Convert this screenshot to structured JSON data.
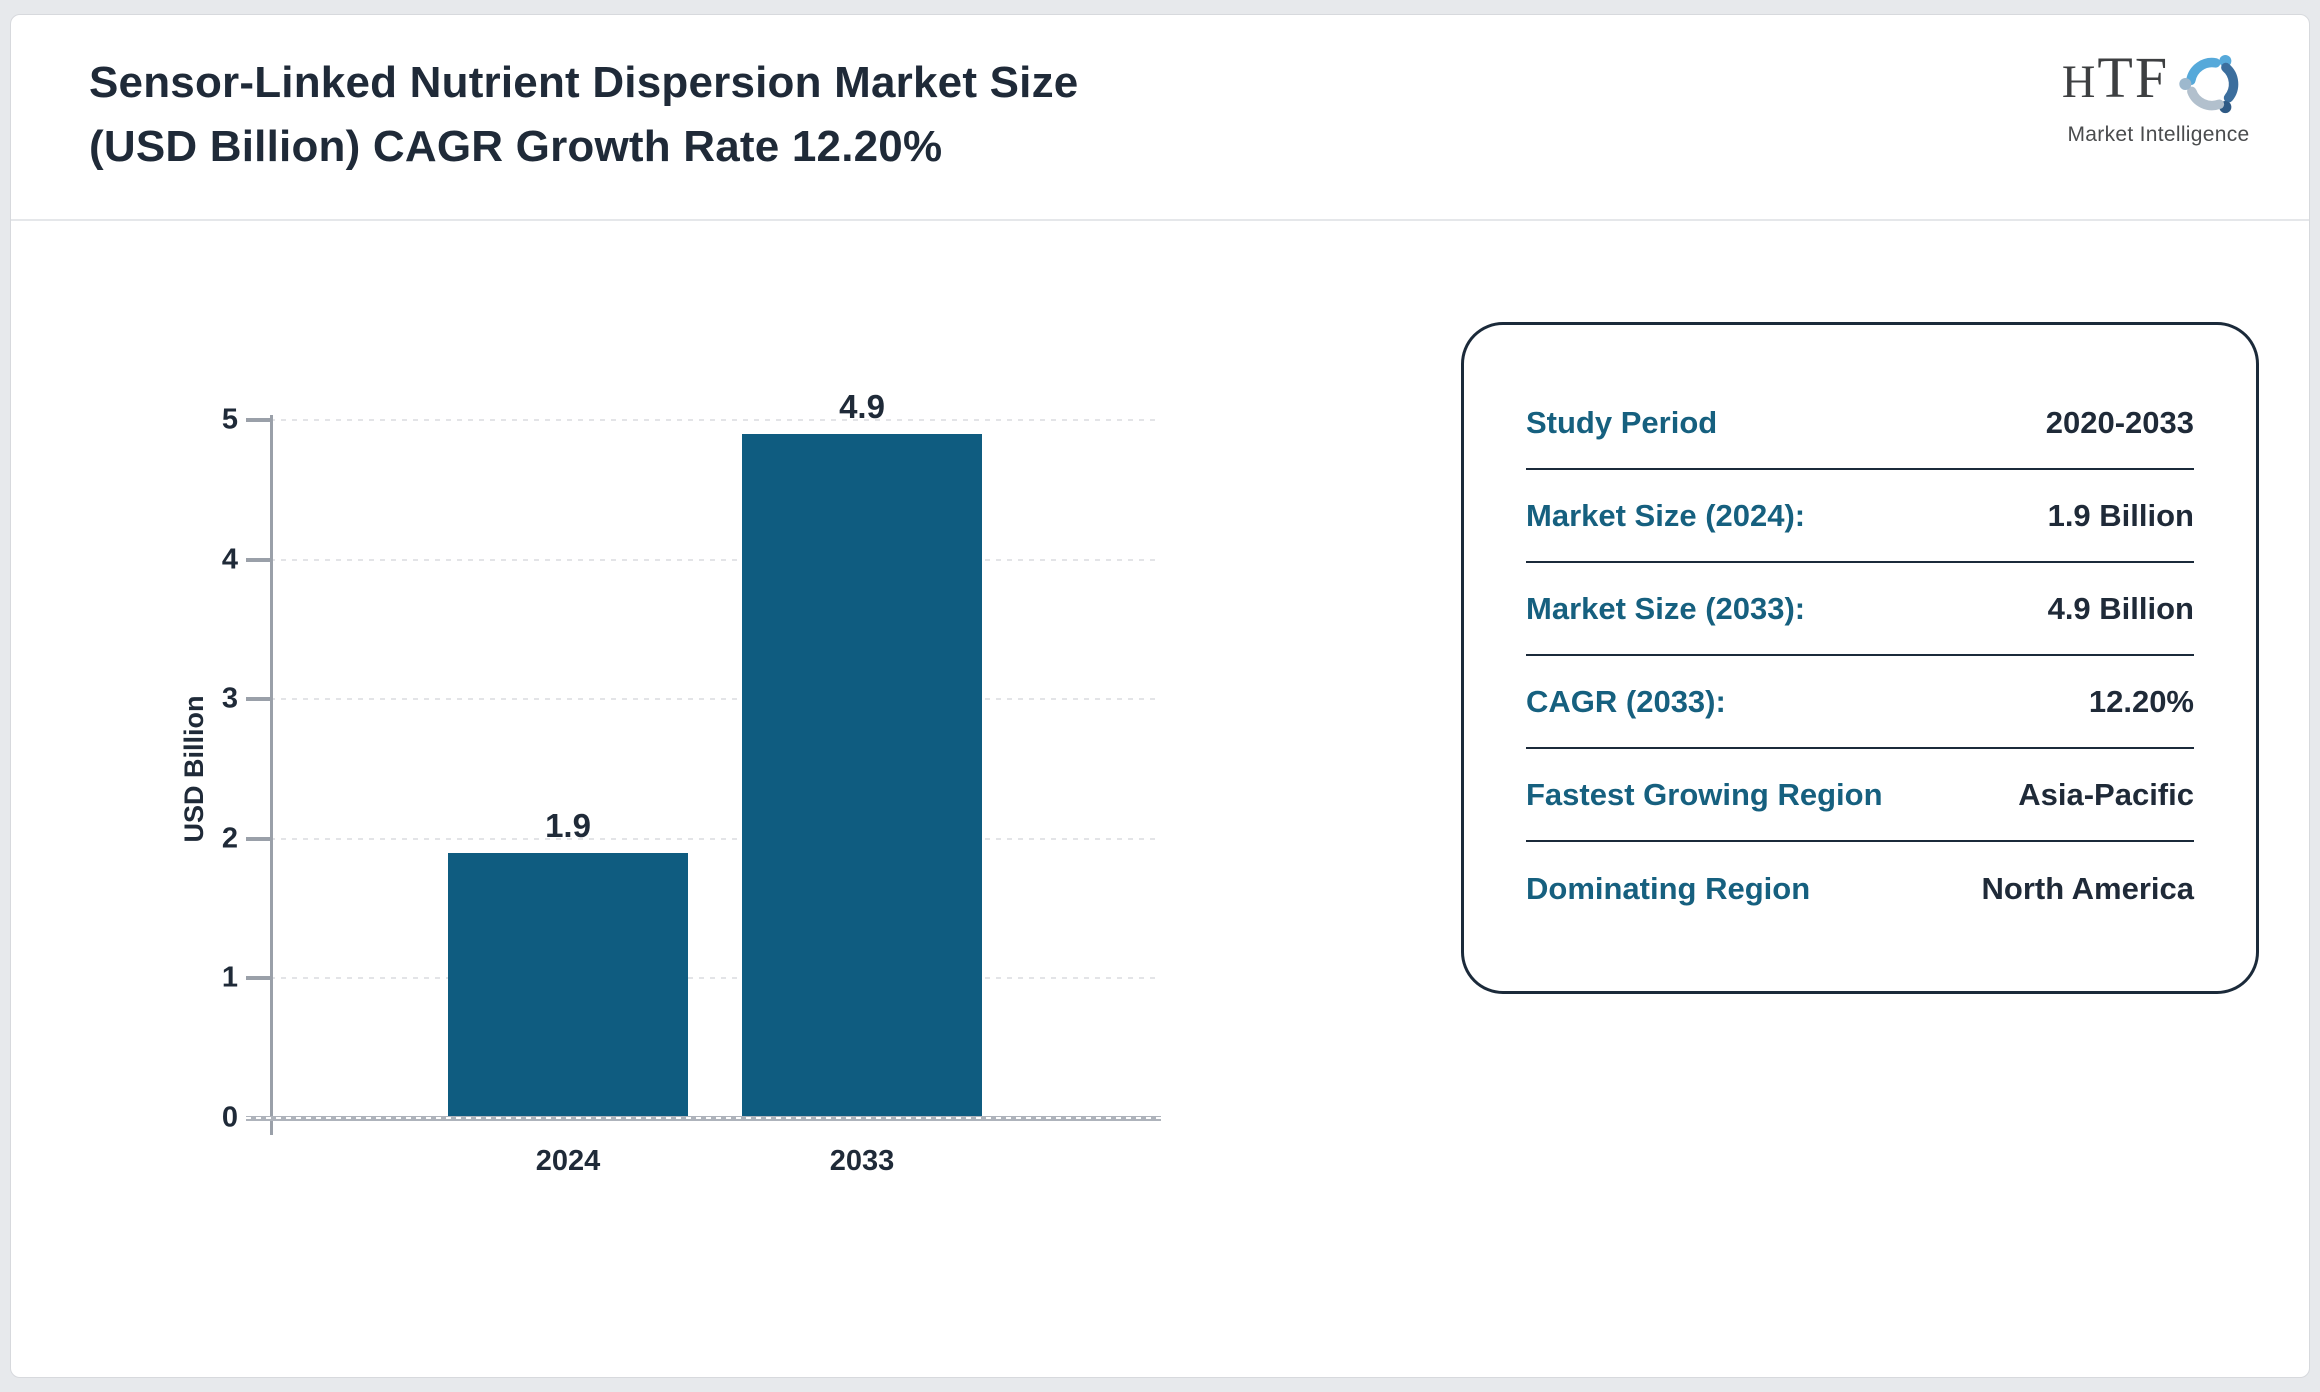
{
  "header": {
    "title_lines": [
      "Sensor-Linked Nutrient Dispersion Market Size",
      "(USD Billion) CAGR Growth Rate 12.20%"
    ]
  },
  "logo": {
    "name": "HTF",
    "subtext": "Market Intelligence",
    "colors": {
      "figure_light_blue": "#56a9da",
      "figure_steel_blue": "#3c6e9d",
      "figure_pale_blue": "#b2c0cd",
      "head_dark_blue": "#2f5a85"
    }
  },
  "chart_data": {
    "type": "bar",
    "title": "Sensor-Linked Nutrient Dispersion Market Size (USD Billion) CAGR Growth Rate 12.20%",
    "categories": [
      "2024",
      "2033"
    ],
    "values": [
      1.9,
      4.9
    ],
    "bar_labels": [
      "1.9",
      "4.9"
    ],
    "xlabel": "",
    "ylabel": "USD Billion",
    "ylim": [
      0,
      5
    ],
    "yticks": [
      0,
      1,
      2,
      3,
      4,
      5
    ],
    "grid": "horizontal-dotted",
    "legend": "none",
    "bar_color": "#0f5c80"
  },
  "info_panel": {
    "rows": [
      {
        "label": "Study Period",
        "value": "2020-2033"
      },
      {
        "label": "Market Size (2024):",
        "value": "1.9 Billion"
      },
      {
        "label": "Market Size (2033):",
        "value": "4.9 Billion"
      },
      {
        "label": "CAGR (2033):",
        "value": "12.20%"
      },
      {
        "label": "Fastest Growing Region",
        "value": "Asia-Pacific"
      },
      {
        "label": "Dominating Region",
        "value": "North America"
      }
    ]
  }
}
